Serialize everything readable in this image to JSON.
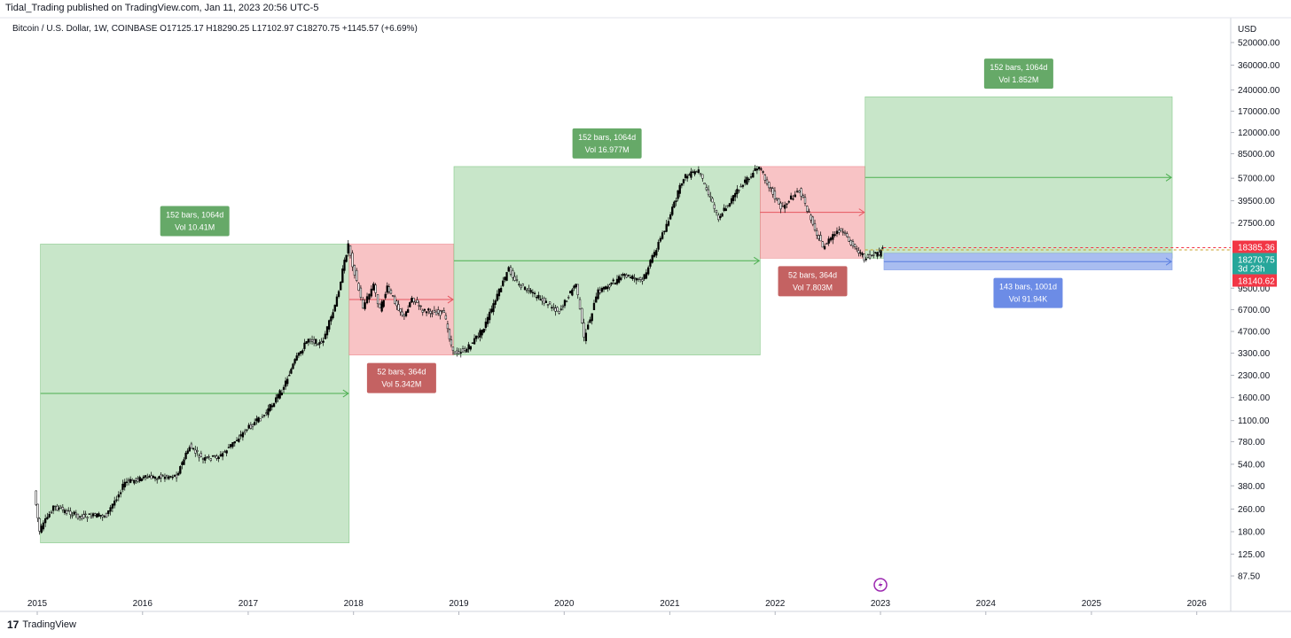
{
  "header": {
    "publisher_line": "Tidal_Trading published on TradingView.com, Jan 11, 2023 20:56 UTC-5",
    "legend_line": "Bitcoin / U.S. Dollar, 1W, COINBASE  O17125.17  H18290.25  L17102.97  C18270.75  +1145.57 (+6.69%)"
  },
  "footer": {
    "brand": "TradingView",
    "logo": "17"
  },
  "colors": {
    "green_fill": "#c8e6c9",
    "green_line": "#4caf50",
    "green_label": "#66a968",
    "red_fill": "#f8c3c5",
    "red_line": "#e5565f",
    "red_label": "#c46262",
    "blue_fill": "#a9bdf0",
    "blue_line": "#5b7fe0",
    "blue_label": "#6c8ce6",
    "price_red": "#f23645",
    "price_green": "#26a69a"
  },
  "chart_data": {
    "type": "candlestick",
    "title": "Bitcoin / U.S. Dollar, 1W, COINBASE",
    "yscale": "log",
    "y_axis_unit": "USD",
    "y_ticks": [
      "520000.00",
      "360000.00",
      "240000.00",
      "170000.00",
      "120000.00",
      "85000.00",
      "57000.00",
      "39500.00",
      "27500.00",
      "18385.36",
      "18270.75",
      "18140.62",
      "9500.00",
      "6700.00",
      "4700.00",
      "3300.00",
      "2300.00",
      "1600.00",
      "1100.00",
      "780.00",
      "540.00",
      "380.00",
      "260.00",
      "180.00",
      "125.00",
      "87.50"
    ],
    "x_ticks": [
      "2015",
      "2016",
      "2017",
      "2018",
      "2019",
      "2020",
      "2021",
      "2022",
      "2023",
      "2024",
      "2025",
      "2026"
    ],
    "price_path": [
      [
        "2014-12-25",
        350
      ],
      [
        "2015-01-12",
        180
      ],
      [
        "2015-03-01",
        270
      ],
      [
        "2015-06-01",
        230
      ],
      [
        "2015-09-01",
        235
      ],
      [
        "2015-11-04",
        400
      ],
      [
        "2016-01-01",
        430
      ],
      [
        "2016-05-01",
        450
      ],
      [
        "2016-06-15",
        720
      ],
      [
        "2016-08-01",
        580
      ],
      [
        "2016-10-01",
        620
      ],
      [
        "2016-12-31",
        960
      ],
      [
        "2017-03-01",
        1200
      ],
      [
        "2017-05-01",
        1800
      ],
      [
        "2017-06-15",
        2900
      ],
      [
        "2017-08-01",
        4200
      ],
      [
        "2017-09-15",
        3800
      ],
      [
        "2017-11-01",
        7000
      ],
      [
        "2017-12-17",
        19500
      ],
      [
        "2018-01-01",
        14000
      ],
      [
        "2018-02-06",
        7000
      ],
      [
        "2018-03-15",
        10000
      ],
      [
        "2018-04-06",
        6700
      ],
      [
        "2018-05-01",
        9500
      ],
      [
        "2018-06-29",
        5900
      ],
      [
        "2018-07-25",
        8200
      ],
      [
        "2018-09-01",
        6600
      ],
      [
        "2018-11-14",
        6300
      ],
      [
        "2018-12-15",
        3300
      ],
      [
        "2019-02-01",
        3500
      ],
      [
        "2019-04-01",
        5000
      ],
      [
        "2019-06-26",
        13000
      ],
      [
        "2019-08-01",
        10000
      ],
      [
        "2019-10-01",
        8300
      ],
      [
        "2019-12-18",
        6500
      ],
      [
        "2020-02-14",
        10300
      ],
      [
        "2020-03-13",
        4200
      ],
      [
        "2020-05-01",
        9000
      ],
      [
        "2020-08-01",
        11700
      ],
      [
        "2020-10-01",
        10700
      ],
      [
        "2020-12-31",
        29000
      ],
      [
        "2021-02-21",
        58000
      ],
      [
        "2021-04-14",
        64000
      ],
      [
        "2021-06-22",
        30000
      ],
      [
        "2021-09-01",
        48000
      ],
      [
        "2021-10-20",
        62000
      ],
      [
        "2021-11-10",
        69000
      ],
      [
        "2022-01-24",
        35000
      ],
      [
        "2022-03-29",
        47000
      ],
      [
        "2022-06-18",
        18500
      ],
      [
        "2022-08-14",
        24500
      ],
      [
        "2022-10-01",
        19400
      ],
      [
        "2022-11-09",
        15500
      ],
      [
        "2022-12-31",
        16600
      ],
      [
        "2023-01-11",
        18270
      ]
    ],
    "measurements": [
      {
        "kind": "up",
        "start": "2015-01-12",
        "end": "2017-12-17",
        "low": 150,
        "high": 19500,
        "label1": "152 bars, 1064d",
        "label2": "Vol 10.41M"
      },
      {
        "kind": "down",
        "start": "2017-12-17",
        "end": "2018-12-15",
        "low": 3200,
        "high": 19500,
        "label1": "52 bars, 364d",
        "label2": "Vol 5.342M"
      },
      {
        "kind": "up",
        "start": "2018-12-15",
        "end": "2021-11-10",
        "low": 3200,
        "high": 69000,
        "label1": "152 bars, 1064d",
        "label2": "Vol 16.977M"
      },
      {
        "kind": "down",
        "start": "2021-11-10",
        "end": "2022-11-09",
        "low": 15500,
        "high": 69000,
        "label1": "52 bars, 364d",
        "label2": "Vol 7.803M"
      },
      {
        "kind": "up",
        "start": "2022-11-09",
        "end": "2025-10-08",
        "low": 15500,
        "high": 215000,
        "label1": "152 bars, 1064d",
        "label2": "Vol 1.852M"
      },
      {
        "kind": "blue",
        "start": "2023-01-13",
        "end": "2025-10-08",
        "low": 12800,
        "high": 16800,
        "label1": "143 bars, 1001d",
        "label2": "Vol 91.94K"
      }
    ],
    "price_labels": [
      {
        "value": 18385.36,
        "text": "18385.36",
        "color": "red"
      },
      {
        "value": 18270.75,
        "text": "18270.75",
        "sub": "3d 23h",
        "color": "green"
      },
      {
        "value": 18140.62,
        "text": "18140.62",
        "color": "red"
      }
    ]
  }
}
